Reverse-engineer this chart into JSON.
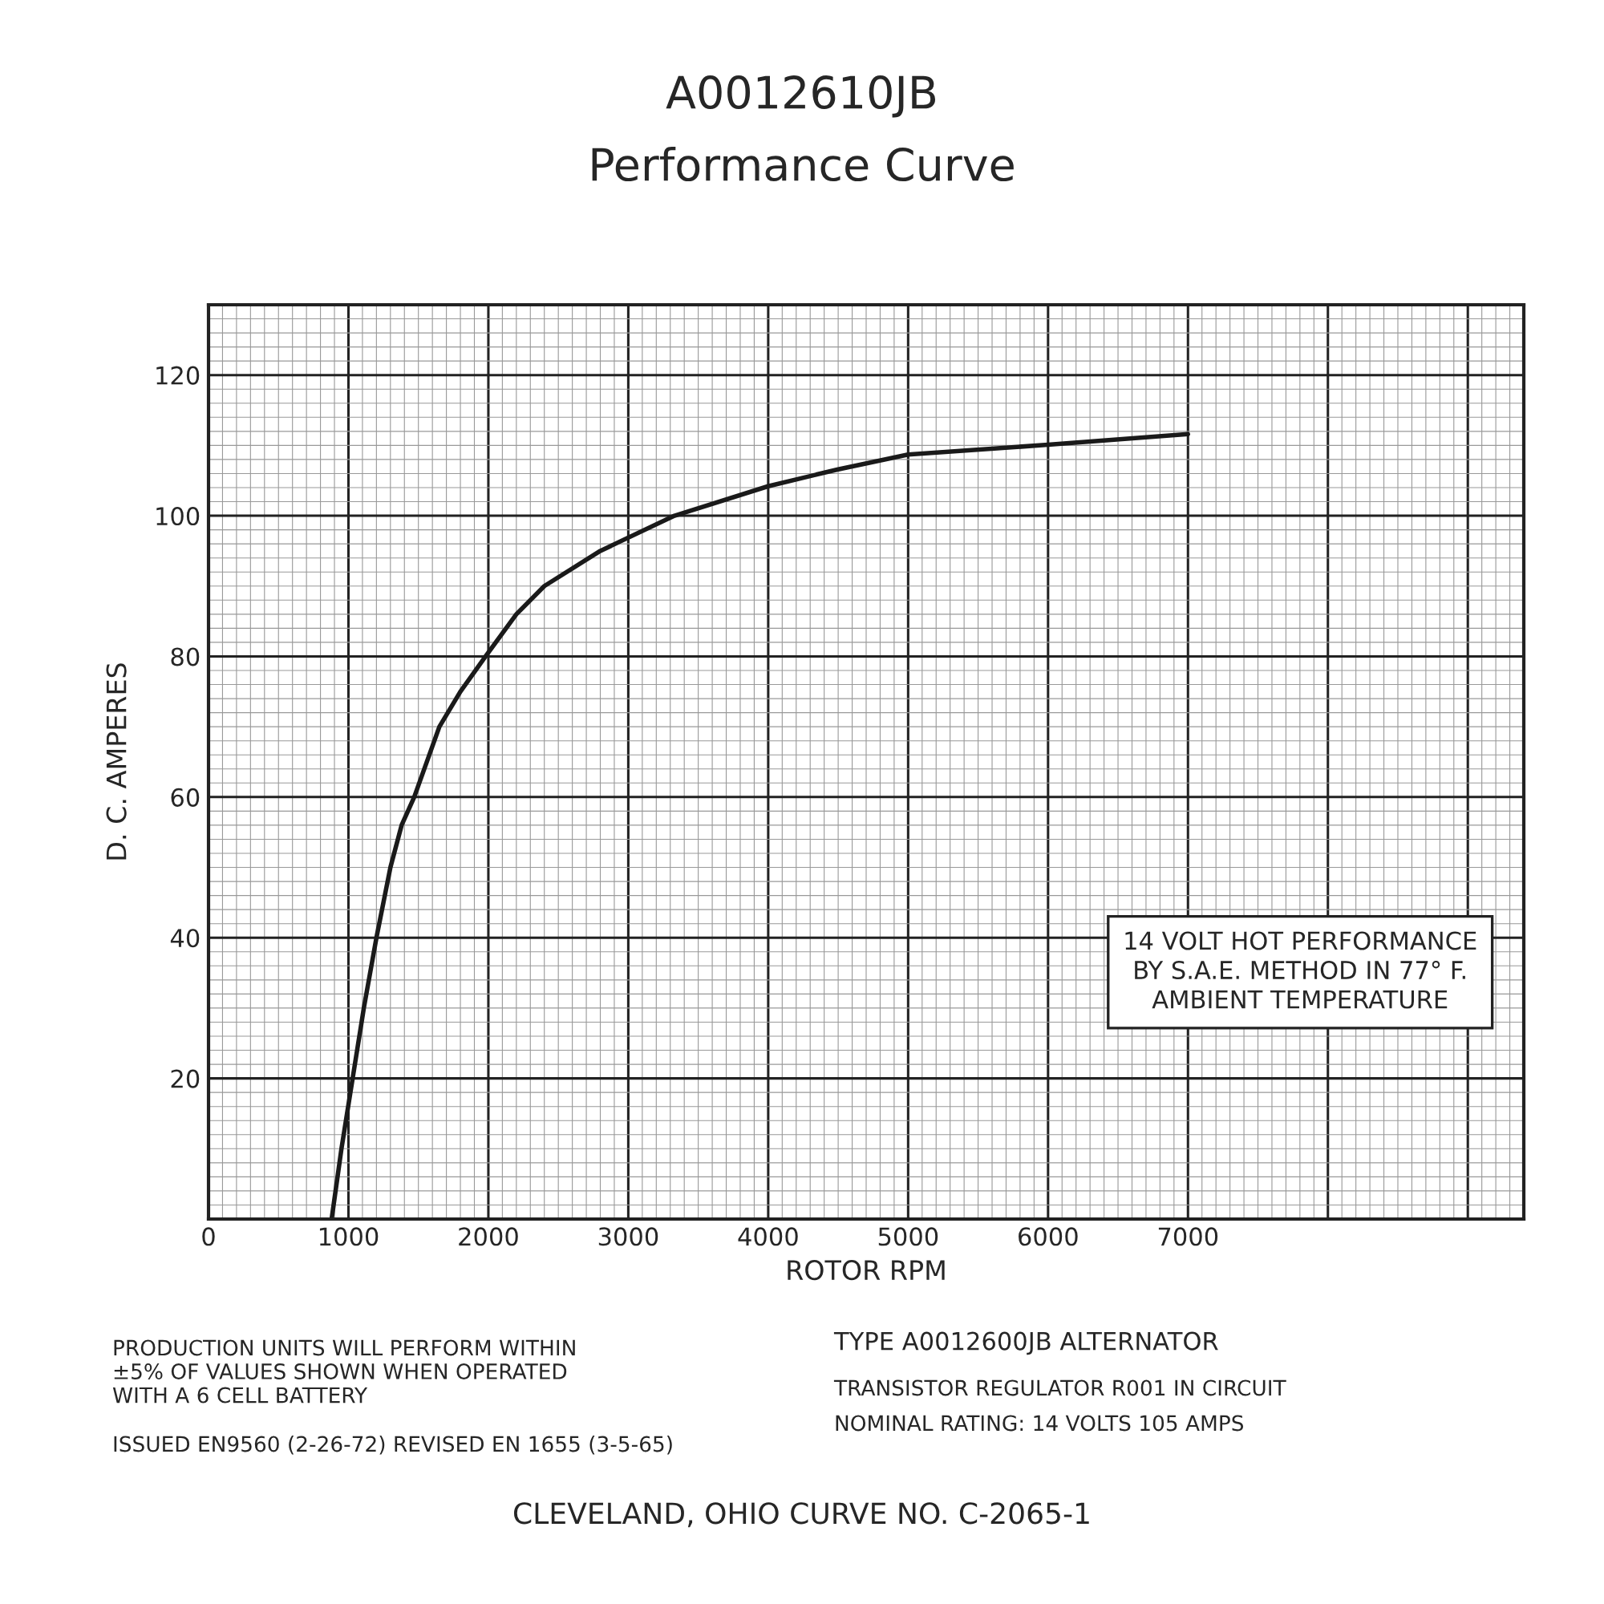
{
  "chart_data": {
    "type": "line",
    "title": "A0012610JB",
    "subtitle": "Performance Curve",
    "xlabel": "ROTOR RPM",
    "ylabel": "D. C. AMPERES",
    "x": [
      880,
      950,
      1030,
      1110,
      1200,
      1300,
      1380,
      1470,
      1650,
      1800,
      1980,
      2200,
      2400,
      2800,
      3330,
      4000,
      4500,
      5000,
      6000,
      7000
    ],
    "series": [
      {
        "color": "#1a1a1a",
        "values": [
          0,
          10,
          20,
          30,
          40,
          50,
          56,
          60,
          70,
          75,
          80,
          86,
          90,
          95,
          100,
          104.2,
          106.6,
          108.7,
          110.1,
          111.6
        ]
      }
    ],
    "xlim": [
      0,
      9400
    ],
    "ylim": [
      0,
      130
    ],
    "xticks": [
      0,
      1000,
      2000,
      3000,
      4000,
      5000,
      6000,
      7000,
      {
        "value": 8000,
        "label": null
      },
      {
        "value": 9000,
        "label": null
      }
    ],
    "yticks": [
      {
        "value": 0,
        "label": null
      },
      20,
      40,
      60,
      80,
      100,
      120
    ],
    "grid": true,
    "marker": "none",
    "line_style": "solid",
    "annotations": [
      "14 VOLT HOT PERFORMANCE\nBY S.A.E. METHOD IN 77° F.\nAMBIENT TEMPERATURE",
      "PRODUCTION UNITS WILL PERFORM WITHIN\n±5% OF VALUES SHOWN WHEN OPERATED\nWITH A 6 CELL BATTERY",
      "ISSUED EN9560 (2-26-72) REVISED EN 1655 (3-5-65)",
      "TYPE A0012600JB ALTERNATOR",
      "TRANSISTOR REGULATOR R001 IN CIRCUIT",
      "NOMINAL RATING: 14 VOLTS 105 AMPS",
      "CLEVELAND, OHIO CURVE NO. C-2065-1"
    ]
  }
}
